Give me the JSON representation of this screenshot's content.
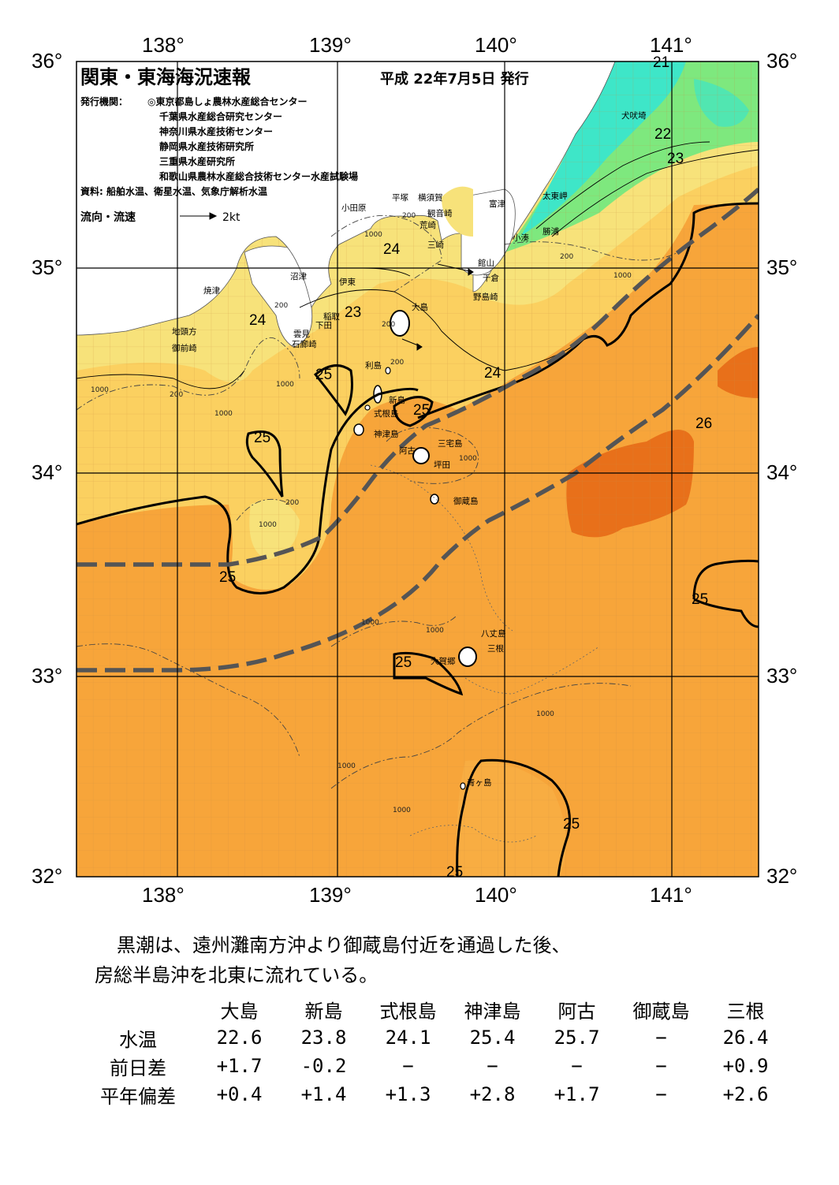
{
  "header": {
    "title": "関東・東海海況速報",
    "issue_date": "平成 22年7月5日 発行",
    "issuers_label": "発行機関：",
    "issuers": [
      "◎東京都島しょ農林水産総合センター",
      "千葉県水産総合研究センター",
      "神奈川県水産技術センター",
      "静岡県水産技術研究所",
      "三重県水産研究所",
      "和歌山県農林水産総合技術センター水産試験場"
    ],
    "sources": "資料: 船舶水温、衛星水温、気象庁解析水温",
    "current_legend": "流向・流速",
    "current_scale": "2kt"
  },
  "axes": {
    "lon_labels": [
      "138°",
      "139°",
      "140°",
      "141°"
    ],
    "lat_labels": [
      "36°",
      "35°",
      "34°",
      "33°",
      "32°"
    ]
  },
  "places": {
    "odawara": "小田原",
    "hiratsuka": "平塚",
    "yokosuka": "横須賀",
    "kannonzaki": "観音崎",
    "arasaki": "荒崎",
    "misaki": "三崎",
    "futtsu": "富津",
    "tateyama": "館山",
    "chikura": "千倉",
    "nojimazaki": "野島崎",
    "inubosaki": "犬吠埼",
    "taitomisaki": "太東岬",
    "katsuura": "勝浦",
    "kominato": "小湊",
    "numazu": "沼津",
    "ito": "伊東",
    "inatori": "稲取",
    "shimoda": "下田",
    "kumomi": "雲見",
    "irozaki": "石廊崎",
    "yaizu": "焼津",
    "jitogata": "地頭方",
    "omaezaki": "御前崎",
    "oshima": "大島",
    "toshima": "利島",
    "niijima": "新島",
    "shikinejima": "式根島",
    "kozushima": "神津島",
    "miyakejima": "三宅島",
    "ako": "阿古",
    "tsubota": "坪田",
    "mikurajima": "御蔵島",
    "hachijojima": "八丈島",
    "mitsune": "三根",
    "okago": "大賀郷",
    "aogashima": "青ヶ島"
  },
  "isotherm_labels": {
    "t21": "21",
    "t22": "22",
    "t23": "23",
    "t24": "24",
    "t25": "25",
    "t26": "26"
  },
  "depth_labels": {
    "d200": "200",
    "d1000": "1000"
  },
  "colors": {
    "sst_21": "#3ee6c8",
    "sst_22": "#7ee87e",
    "sst_23": "#f7e27a",
    "sst_24": "#fbd060",
    "sst_25": "#f7a53a",
    "sst_26": "#e8701a",
    "land": "#ffffff",
    "kuroshio_axis": "#555555"
  },
  "summary": {
    "line1": "黒潮は、遠州灘南方沖より御蔵島付近を通過した後、",
    "line2": "房総半島沖を北東に流れている。"
  },
  "observations": {
    "stations": [
      "大島",
      "新島",
      "式根島",
      "神津島",
      "阿古",
      "御蔵島",
      "三根"
    ],
    "rows": [
      {
        "label": "水温",
        "values": [
          "22.6",
          "23.8",
          "24.1",
          "25.4",
          "25.7",
          "−",
          "26.4"
        ]
      },
      {
        "label": "前日差",
        "values": [
          "+1.7",
          "-0.2",
          "−",
          "−",
          "−",
          "−",
          "+0.9"
        ]
      },
      {
        "label": "平年偏差",
        "values": [
          "+0.4",
          "+1.4",
          "+1.3",
          "+2.8",
          "+1.7",
          "−",
          "+2.6"
        ]
      }
    ]
  }
}
